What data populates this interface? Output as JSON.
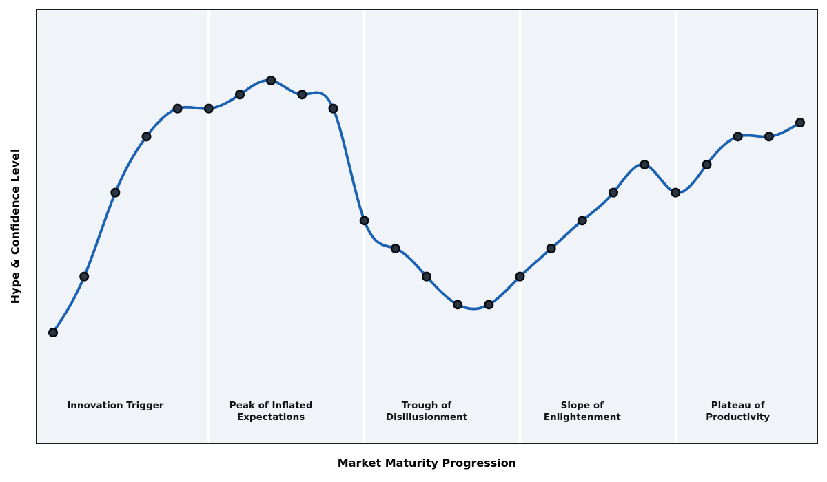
{
  "chart_data": {
    "type": "line",
    "title": "",
    "xlabel": "Market Maturity Progression",
    "ylabel": "Hype & Confidence Level",
    "x": [
      0,
      1,
      2,
      3,
      4,
      5,
      6,
      7,
      8,
      9,
      10,
      11,
      12,
      13,
      14,
      15,
      16,
      17,
      18,
      19,
      20,
      21,
      22,
      23,
      24
    ],
    "y": [
      10,
      30,
      60,
      80,
      90,
      90,
      95,
      100,
      95,
      90,
      50,
      40,
      30,
      20,
      20,
      30,
      40,
      50,
      60,
      70,
      60,
      70,
      80,
      80,
      85
    ],
    "xlim": [
      -0.51,
      24.53
    ],
    "ylim": [
      -29.3,
      125.1
    ],
    "smoothing": "natural-cubic-spline",
    "grid": false,
    "legend": null,
    "axis_ticks": "none",
    "phase_dividers_x": [
      5,
      10,
      15,
      20
    ],
    "phases": [
      {
        "name": "Innovation Trigger",
        "lines": [
          "Innovation Trigger"
        ],
        "center_x": 2
      },
      {
        "name": "Peak of Inflated Expectations",
        "lines": [
          "Peak of Inflated",
          "Expectations"
        ],
        "center_x": 7
      },
      {
        "name": "Trough of Disillusionment",
        "lines": [
          "Trough of",
          "Disillusionment"
        ],
        "center_x": 12
      },
      {
        "name": "Slope of Enlightenment",
        "lines": [
          "Slope of",
          "Enlightenment"
        ],
        "center_x": 17
      },
      {
        "name": "Plateau of Productivity",
        "lines": [
          "Plateau of",
          "Productivity"
        ],
        "center_x": 22
      }
    ],
    "colors": {
      "line": "#1a61b4",
      "marker_fill": "#2a3542",
      "marker_edge": "#06090d",
      "plot_background": "#f0f4f8",
      "divider": "#ffffff",
      "spine": "#1c1c1c",
      "text": "#111111",
      "figure_background": "#ffffff"
    }
  }
}
